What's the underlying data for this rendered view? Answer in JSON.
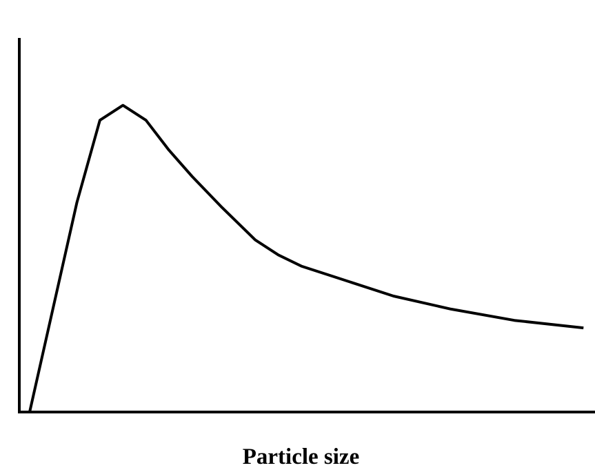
{
  "chart_data": {
    "type": "line",
    "title": "",
    "xlabel": "Particle size",
    "ylabel": "",
    "xlim": [
      0,
      100
    ],
    "ylim": [
      0,
      100
    ],
    "grid": false,
    "legend": "none",
    "line_color": "#000000",
    "series": [
      {
        "x": [
          0,
          1.8,
          10,
          14,
          18,
          22,
          26,
          30,
          35,
          41,
          45,
          49,
          55,
          65,
          75,
          86,
          98
        ],
        "y": [
          0,
          0,
          56,
          78,
          82,
          78,
          70,
          63,
          55,
          46,
          42,
          39,
          36,
          31,
          27.5,
          24.5,
          22.5
        ]
      }
    ]
  }
}
